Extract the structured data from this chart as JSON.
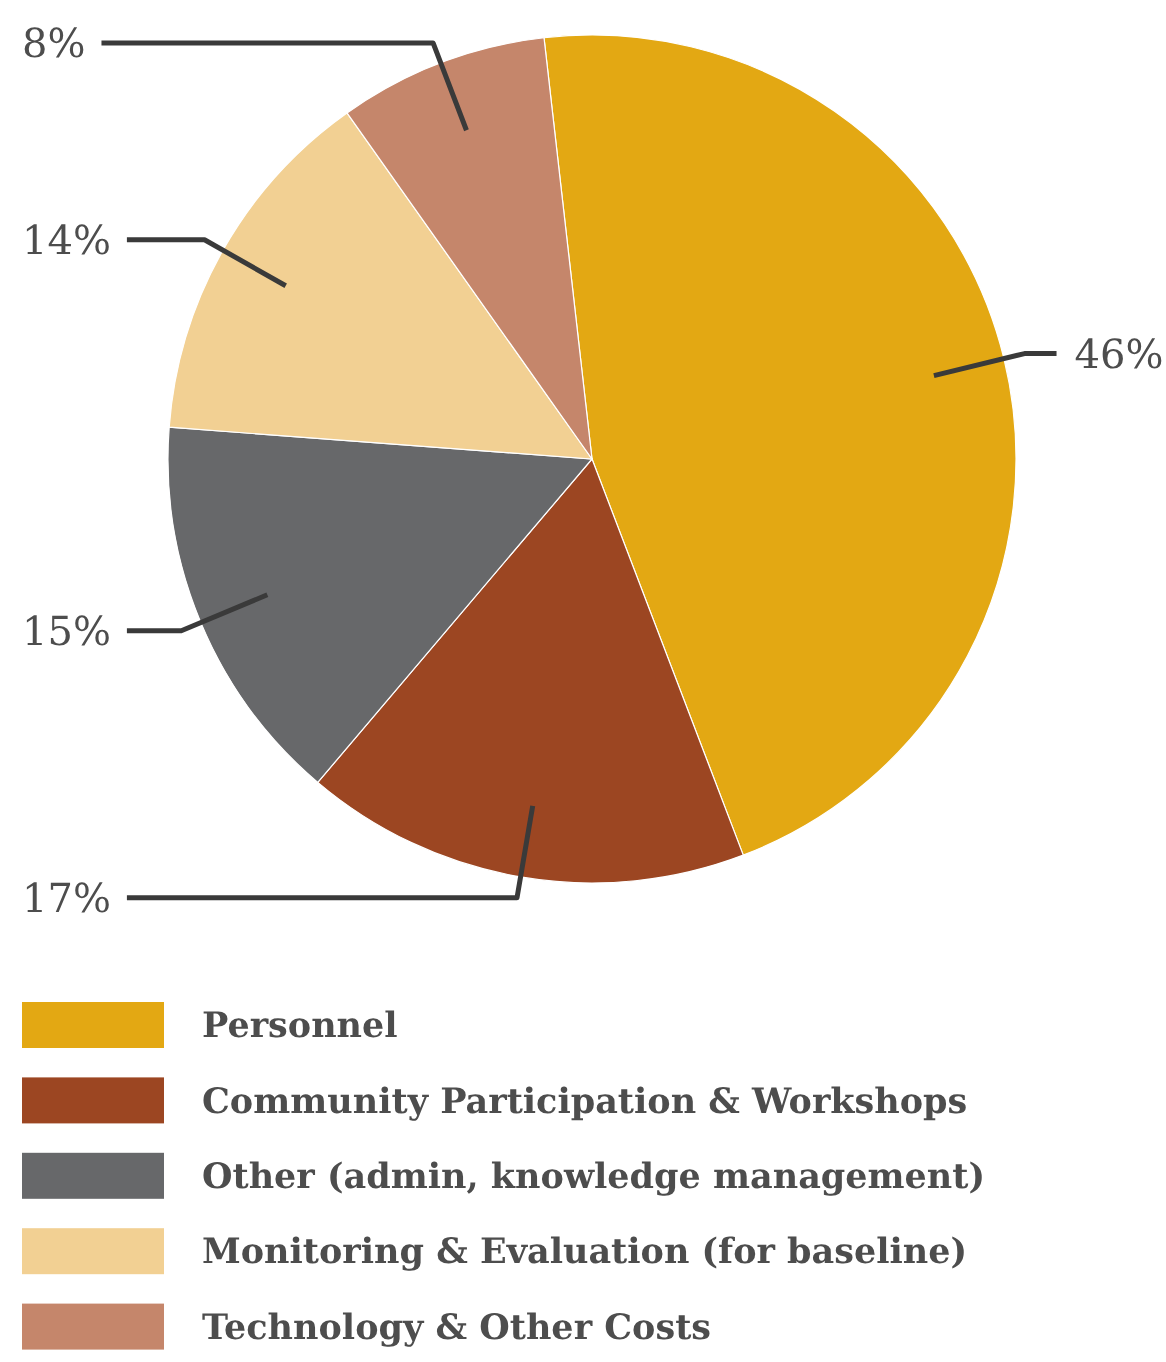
{
  "chart_data": {
    "type": "pie",
    "categories": [
      "Personnel",
      "Community Participation & Workshops",
      "Other (admin, knowledge management)",
      "Monitoring & Evaluation (for baseline)",
      "Technology & Other Costs"
    ],
    "values": [
      46,
      17,
      15,
      14,
      8
    ],
    "colors": [
      "#e3a813",
      "#9c4622",
      "#67686a",
      "#f2d093",
      "#c5866b"
    ],
    "value_labels": [
      "46%",
      "17%",
      "15%",
      "14%",
      "8%"
    ],
    "legend": "bottom"
  }
}
